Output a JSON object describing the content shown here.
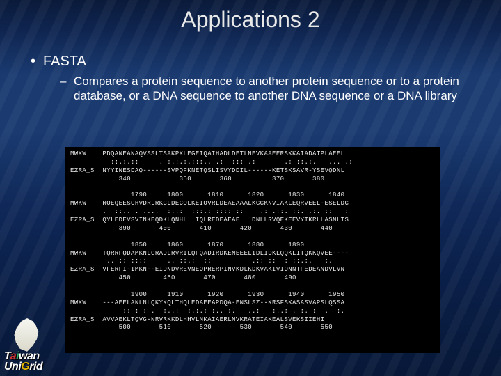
{
  "slide": {
    "title": "Applications 2",
    "bullet_main": "FASTA",
    "bullet_sub": "Compares a protein sequence to another protein sequence or to a protein database, or a DNA sequence to another DNA sequence or a DNA library"
  },
  "alignment": {
    "background": "#000000",
    "text_color": "#e8e8e8",
    "font_family": "Courier New",
    "lines": [
      "MWKW    PDQANEANAQVSSLTSAKPKLEGEIQAIHADLDETLNEVKAAEERSKKAIADATPLAEEL",
      "          ::.:.::     . :.:.:.:::.. .:  ::: .:       .: ::.:.   ... .:",
      "EZRA_S  NYYINESDAQ------SVPQFKNETQSLISVYDDIL------KETSKSAVR-YSEVQDNL",
      "            340            350       360          370       380",
      "",
      "               1790     1800      1810      1820      1830      1840",
      "MWKW    ROEQEESCHVDRLRKGLDECOLKEIOVRLDEAEAAALKGGKNVIAKLEQRVEEL-ESELDG",
      "        .  ::.. . ....  :.::  :::.: :::: ::    .: .::. ::. .:. ::   :",
      "EZRA_S  QYLEDEVSVINKEQDKLQNHL  IQLREDEAEAE   DNLLRVQEKEEVYTKRLLASNLTS",
      "            390       400       410       420       430       440",
      "",
      "               1850     1860      1870      1880      1890",
      "MWKW    TQRRFQDAMKNLGRADLRVRILQFQADIRDKENEEELIDLIDKLQQKLITQKKQVEE----",
      "         .. :: ::::     .. ::.:  ::          .:: ::  : ::.:.   :.",
      "EZRA_S  VFERFI-IMKN--EIDNDVREVNEOPRERPINVKDLKDKVAKIVIONNTFEDEANDVLVN",
      "            450        460       470       480       490",
      "",
      "               1900     1910      1920      1930      1940      1950",
      "MWKW    ---AEELANLNLQKYKQLTHQLEDAEEAPDQA-ENSLSZ--KRSFSKASASVAPSLQSSA",
      "             :: : : .  :..:  :.:.: :.. :.   ..:   :..: . :. :  .  :.",
      "EZRA_S  AVVAEKLTQVG-NRVRKKDLHHVLNKAIAERLNVKRATEIAKEALSVEKSIIEHI",
      "            500       510       520       530       540       550"
    ]
  },
  "logo": {
    "line1": "Taiwan",
    "line2": "UniGrid"
  },
  "palette": {
    "bg_top": "#0a1a3a",
    "bg_mid": "#1a3a70",
    "bg_bottom": "#071838",
    "title_color": "#e8e8e8",
    "text_color": "#ffffff"
  }
}
